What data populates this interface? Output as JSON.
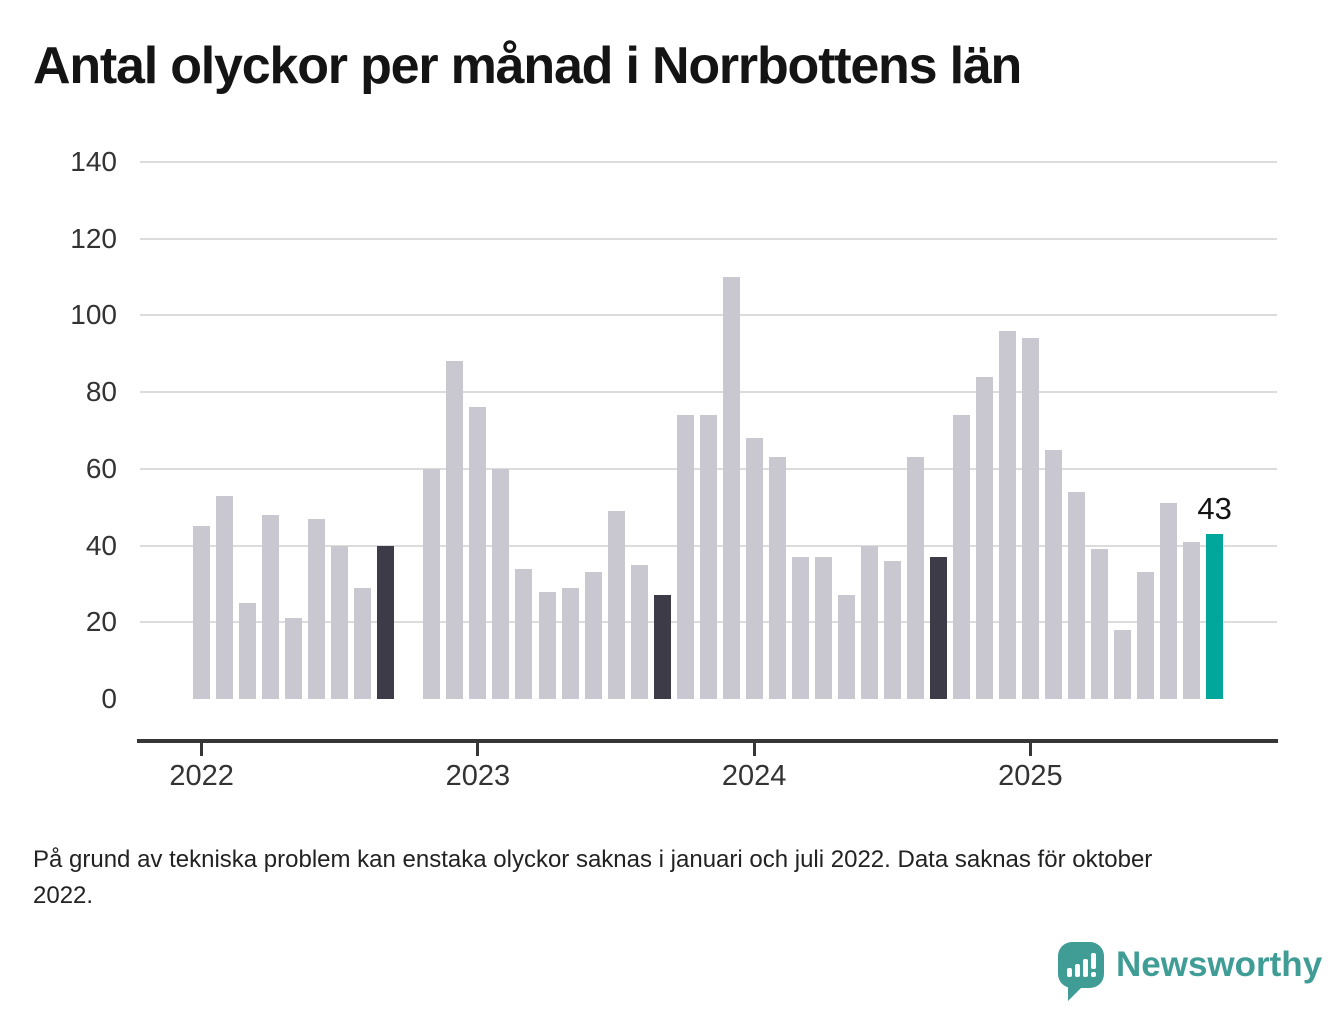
{
  "title": "Antal olyckor per månad i Norrbottens län",
  "footnote": "På grund av tekniska problem kan enstaka olyckor saknas i januari och juli 2022. Data saknas för oktober 2022.",
  "logo": {
    "text": "Newsworthy"
  },
  "colors": {
    "bar": "#c9c8d0",
    "bar_dark": "#3d3b48",
    "bar_current": "#00a69a",
    "gridline": "#dcdcdc",
    "axis": "#363636",
    "logo_teal": "#3f9d96"
  },
  "chart_data": {
    "type": "bar",
    "title": "Antal olyckor per månad i Norrbottens län",
    "xlabel": "",
    "ylabel": "",
    "ylim": [
      0,
      140
    ],
    "y_ticks": [
      0,
      20,
      40,
      60,
      80,
      100,
      120,
      140
    ],
    "grid": "horizontal",
    "legend_position": "none",
    "note": "Bar for 2022-10 missing (no data). September bars 2022–2024 dark, September 2025 teal with value label.",
    "years": [
      {
        "label": "2022",
        "month_index": 0
      },
      {
        "label": "2023",
        "month_index": 12
      },
      {
        "label": "2024",
        "month_index": 24
      },
      {
        "label": "2025",
        "month_index": 36
      }
    ],
    "series": [
      {
        "month": "2022-01",
        "value": 45,
        "type": "normal"
      },
      {
        "month": "2022-02",
        "value": 53,
        "type": "normal"
      },
      {
        "month": "2022-03",
        "value": 25,
        "type": "normal"
      },
      {
        "month": "2022-04",
        "value": 48,
        "type": "normal"
      },
      {
        "month": "2022-05",
        "value": 21,
        "type": "normal"
      },
      {
        "month": "2022-06",
        "value": 47,
        "type": "normal"
      },
      {
        "month": "2022-07",
        "value": 40,
        "type": "normal"
      },
      {
        "month": "2022-08",
        "value": 29,
        "type": "normal"
      },
      {
        "month": "2022-09",
        "value": 40,
        "type": "dark"
      },
      {
        "month": "2022-10",
        "value": null,
        "type": "missing"
      },
      {
        "month": "2022-11",
        "value": 60,
        "type": "normal"
      },
      {
        "month": "2022-12",
        "value": 88,
        "type": "normal"
      },
      {
        "month": "2023-01",
        "value": 76,
        "type": "normal"
      },
      {
        "month": "2023-02",
        "value": 60,
        "type": "normal"
      },
      {
        "month": "2023-03",
        "value": 34,
        "type": "normal"
      },
      {
        "month": "2023-04",
        "value": 28,
        "type": "normal"
      },
      {
        "month": "2023-05",
        "value": 29,
        "type": "normal"
      },
      {
        "month": "2023-06",
        "value": 33,
        "type": "normal"
      },
      {
        "month": "2023-07",
        "value": 49,
        "type": "normal"
      },
      {
        "month": "2023-08",
        "value": 35,
        "type": "normal"
      },
      {
        "month": "2023-09",
        "value": 27,
        "type": "dark"
      },
      {
        "month": "2023-10",
        "value": 74,
        "type": "normal"
      },
      {
        "month": "2023-11",
        "value": 74,
        "type": "normal"
      },
      {
        "month": "2023-12",
        "value": 110,
        "type": "normal"
      },
      {
        "month": "2024-01",
        "value": 68,
        "type": "normal"
      },
      {
        "month": "2024-02",
        "value": 63,
        "type": "normal"
      },
      {
        "month": "2024-03",
        "value": 37,
        "type": "normal"
      },
      {
        "month": "2024-04",
        "value": 37,
        "type": "normal"
      },
      {
        "month": "2024-05",
        "value": 27,
        "type": "normal"
      },
      {
        "month": "2024-06",
        "value": 40,
        "type": "normal"
      },
      {
        "month": "2024-07",
        "value": 36,
        "type": "normal"
      },
      {
        "month": "2024-08",
        "value": 63,
        "type": "normal"
      },
      {
        "month": "2024-09",
        "value": 37,
        "type": "dark"
      },
      {
        "month": "2024-10",
        "value": 74,
        "type": "normal"
      },
      {
        "month": "2024-11",
        "value": 84,
        "type": "normal"
      },
      {
        "month": "2024-12",
        "value": 96,
        "type": "normal"
      },
      {
        "month": "2025-01",
        "value": 94,
        "type": "normal"
      },
      {
        "month": "2025-02",
        "value": 65,
        "type": "normal"
      },
      {
        "month": "2025-03",
        "value": 54,
        "type": "normal"
      },
      {
        "month": "2025-04",
        "value": 39,
        "type": "normal"
      },
      {
        "month": "2025-05",
        "value": 18,
        "type": "normal"
      },
      {
        "month": "2025-06",
        "value": 33,
        "type": "normal"
      },
      {
        "month": "2025-07",
        "value": 51,
        "type": "normal"
      },
      {
        "month": "2025-08",
        "value": 41,
        "type": "normal"
      },
      {
        "month": "2025-09",
        "value": 43,
        "type": "current",
        "label": "43"
      }
    ]
  }
}
